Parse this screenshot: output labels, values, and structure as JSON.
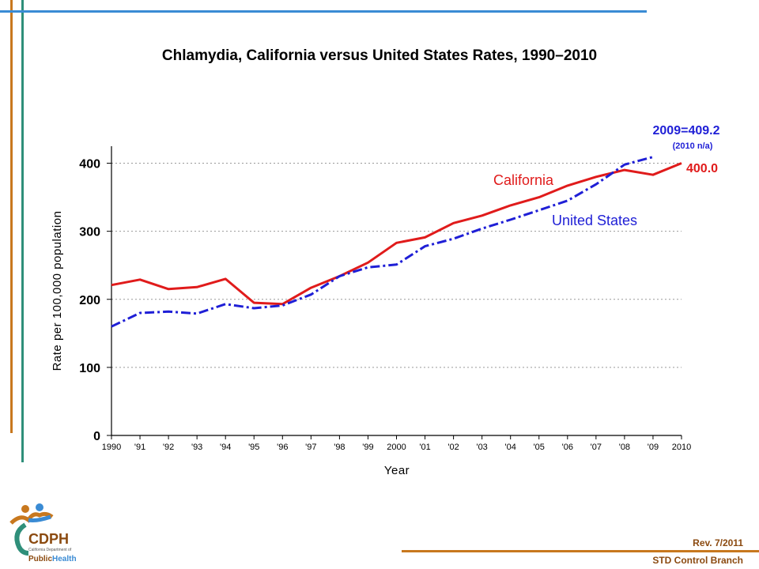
{
  "chart_data": {
    "type": "line",
    "title": "Chlamydia, California versus United States Rates, 1990–2010",
    "xlabel": "Year",
    "ylabel": "Rate per 100,000 population",
    "x": [
      1990,
      1991,
      1992,
      1993,
      1994,
      1995,
      1996,
      1997,
      1998,
      1999,
      2000,
      2001,
      2002,
      2003,
      2004,
      2005,
      2006,
      2007,
      2008,
      2009,
      2010
    ],
    "x_tick_labels": [
      "1990",
      "'91",
      "'92",
      "'93",
      "'94",
      "'95",
      "'96",
      "'97",
      "'98",
      "'99",
      "2000",
      "'01",
      "'02",
      "'03",
      "'04",
      "'05",
      "'06",
      "'07",
      "'08",
      "'09",
      "2010"
    ],
    "y_ticks": [
      0,
      100,
      200,
      300,
      400
    ],
    "y_tick_labels": [
      "0",
      "100",
      "200",
      "300",
      "400"
    ],
    "ylim": [
      0,
      425
    ],
    "grid": "horizontal dotted",
    "series": [
      {
        "name": "California",
        "color": "#e01b1b",
        "style": "solid",
        "values": [
          221,
          229,
          215,
          218,
          230,
          195,
          193,
          217,
          234,
          254,
          283,
          291,
          312,
          323,
          338,
          350,
          367,
          380,
          390,
          383,
          400.0
        ]
      },
      {
        "name": "United States",
        "color": "#1f1fd6",
        "style": "dashed",
        "values": [
          160,
          180,
          182,
          179,
          193,
          187,
          191,
          207,
          234,
          247,
          251,
          278,
          289,
          304,
          317,
          331,
          345,
          369,
          398,
          409.2,
          null
        ]
      }
    ],
    "annotations": {
      "ca_end": "400.0",
      "us_end": "2009=409.2",
      "us_note": "(2010 n/a)"
    }
  },
  "footer": {
    "rev": "Rev. 7/2011",
    "branch": "STD Control Branch"
  },
  "logo": {
    "text_main": "CDPH",
    "text_sub": "California Department of",
    "text_public": "Public",
    "text_health": "Health"
  },
  "colors": {
    "california": "#e01b1b",
    "united_states": "#1f1fd6",
    "footer_text": "#8b4a10"
  }
}
